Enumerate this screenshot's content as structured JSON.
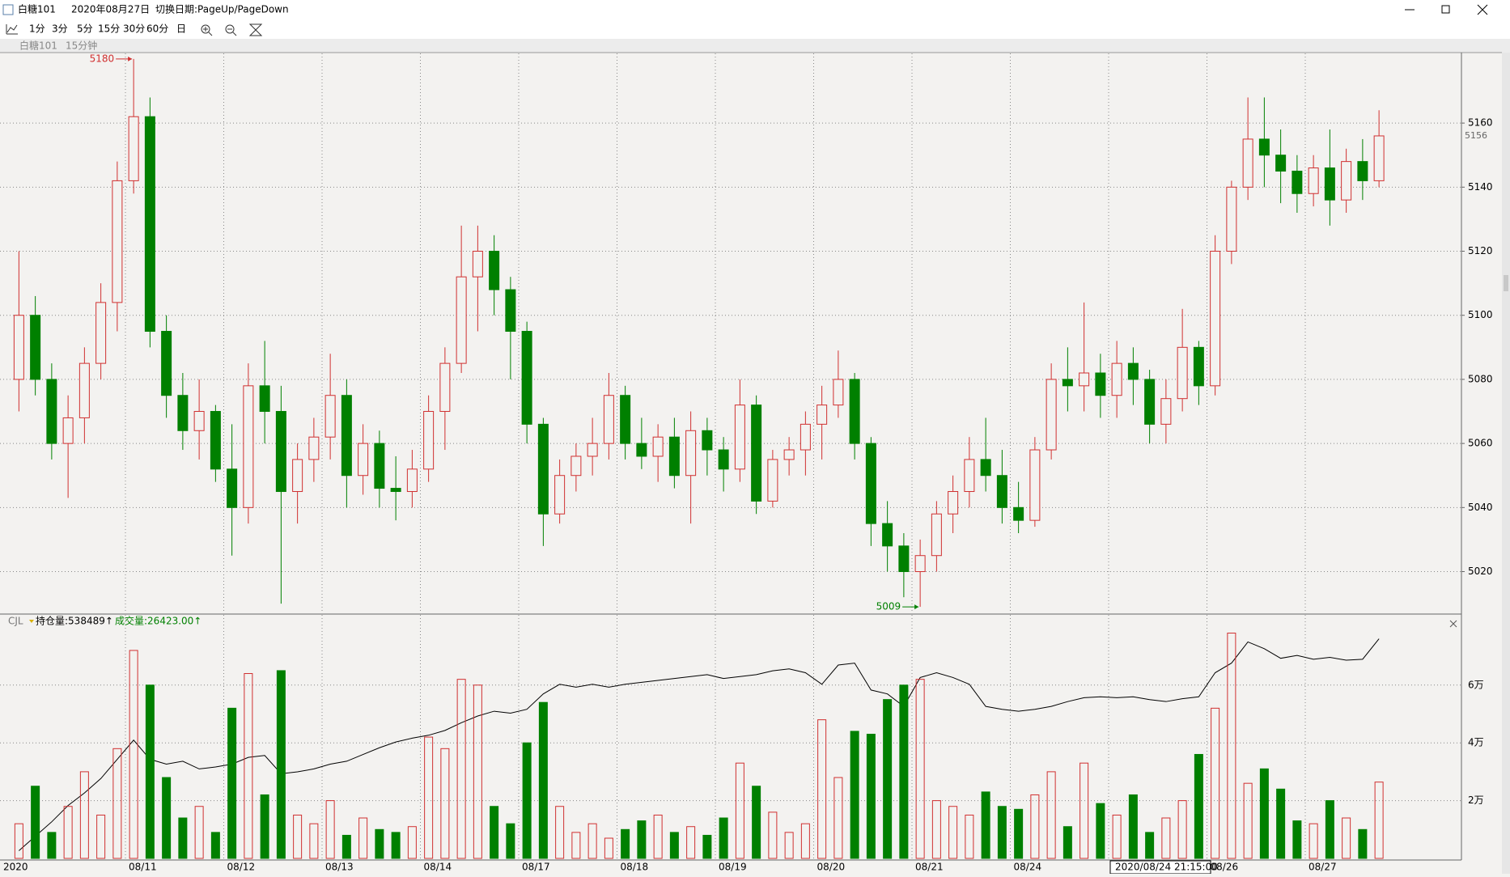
{
  "window": {
    "title": "白糖101",
    "date": "2020年08月27日",
    "hint": "切换日期:PageUp/PageDown",
    "toolbar": [
      "1分",
      "3分",
      "5分",
      "15分",
      "30分",
      "60分",
      "日"
    ],
    "tab": {
      "symbol": "白糖101",
      "period": "15分钟"
    },
    "cursor_time": "2020/08/24 21:15:00"
  },
  "chart_data": [
    {
      "type": "candlestick",
      "up_color": "#d03030",
      "down_color": "#008000",
      "grid": true,
      "ylim": [
        5007,
        5182
      ],
      "yticks": [
        5020,
        5040,
        5060,
        5080,
        5100,
        5120,
        5140,
        5160
      ],
      "max_label": 5180,
      "min_label": 5009,
      "open": [
        5080,
        5100,
        5080,
        5060,
        5068,
        5085,
        5104,
        5142,
        5162,
        5095,
        5075,
        5064,
        5070,
        5052,
        5040,
        5078,
        5070,
        5045,
        5055,
        5062,
        5075,
        5050,
        5060,
        5046,
        5045,
        5052,
        5070,
        5085,
        5112,
        5120,
        5108,
        5095,
        5066,
        5038,
        5050,
        5056,
        5060,
        5075,
        5060,
        5056,
        5062,
        5050,
        5064,
        5058,
        5052,
        5072,
        5042,
        5055,
        5058,
        5066,
        5072,
        5080,
        5060,
        5035,
        5028,
        5020,
        5025,
        5038,
        5045,
        5055,
        5050,
        5040,
        5036,
        5058,
        5080,
        5078,
        5082,
        5075,
        5085,
        5080,
        5066,
        5074,
        5090,
        5078,
        5120,
        5140,
        5155,
        5150,
        5145,
        5138,
        5146,
        5136,
        5148,
        5142
      ],
      "high": [
        5120,
        5106,
        5085,
        5075,
        5090,
        5110,
        5148,
        5180,
        5168,
        5100,
        5082,
        5080,
        5072,
        5066,
        5085,
        5092,
        5078,
        5060,
        5068,
        5088,
        5080,
        5066,
        5064,
        5056,
        5058,
        5075,
        5090,
        5128,
        5128,
        5125,
        5112,
        5098,
        5068,
        5055,
        5060,
        5068,
        5082,
        5078,
        5068,
        5066,
        5068,
        5070,
        5068,
        5062,
        5080,
        5075,
        5058,
        5062,
        5070,
        5078,
        5089,
        5082,
        5062,
        5042,
        5032,
        5030,
        5042,
        5050,
        5062,
        5068,
        5058,
        5048,
        5062,
        5085,
        5090,
        5104,
        5088,
        5092,
        5090,
        5083,
        5080,
        5102,
        5092,
        5125,
        5142,
        5168,
        5168,
        5158,
        5150,
        5150,
        5158,
        5152,
        5155,
        5164
      ],
      "low": [
        5070,
        5075,
        5055,
        5043,
        5060,
        5080,
        5095,
        5138,
        5090,
        5068,
        5058,
        5055,
        5048,
        5025,
        5035,
        5060,
        5010,
        5035,
        5048,
        5055,
        5040,
        5044,
        5040,
        5036,
        5040,
        5048,
        5058,
        5082,
        5095,
        5100,
        5080,
        5060,
        5028,
        5035,
        5045,
        5050,
        5055,
        5055,
        5052,
        5048,
        5046,
        5035,
        5050,
        5045,
        5048,
        5038,
        5040,
        5050,
        5050,
        5055,
        5068,
        5055,
        5028,
        5020,
        5012,
        5009,
        5020,
        5032,
        5040,
        5045,
        5035,
        5032,
        5034,
        5055,
        5070,
        5070,
        5068,
        5068,
        5072,
        5060,
        5060,
        5070,
        5072,
        5075,
        5116,
        5136,
        5140,
        5135,
        5132,
        5134,
        5128,
        5132,
        5136,
        5140
      ],
      "close": [
        5100,
        5080,
        5060,
        5068,
        5085,
        5104,
        5142,
        5162,
        5095,
        5075,
        5064,
        5070,
        5052,
        5040,
        5078,
        5070,
        5045,
        5055,
        5062,
        5075,
        5050,
        5060,
        5046,
        5045,
        5052,
        5070,
        5085,
        5112,
        5120,
        5108,
        5095,
        5066,
        5038,
        5050,
        5056,
        5060,
        5075,
        5060,
        5056,
        5062,
        5050,
        5064,
        5058,
        5052,
        5072,
        5042,
        5055,
        5058,
        5066,
        5072,
        5080,
        5060,
        5035,
        5028,
        5020,
        5025,
        5038,
        5045,
        5055,
        5050,
        5040,
        5036,
        5058,
        5080,
        5078,
        5082,
        5075,
        5085,
        5080,
        5066,
        5074,
        5090,
        5078,
        5120,
        5140,
        5155,
        5150,
        5145,
        5138,
        5146,
        5136,
        5148,
        5142,
        5156
      ]
    },
    {
      "type": "bar",
      "indicator": "CJL",
      "grid": true,
      "categories": [
        "2020",
        null,
        null,
        null,
        null,
        null,
        null,
        "08/11",
        null,
        null,
        null,
        null,
        null,
        "08/12",
        null,
        null,
        null,
        null,
        null,
        "08/13",
        null,
        null,
        null,
        null,
        null,
        "08/14",
        null,
        null,
        null,
        null,
        null,
        "08/17",
        null,
        null,
        null,
        null,
        null,
        "08/18",
        null,
        null,
        null,
        null,
        null,
        "08/19",
        null,
        null,
        null,
        null,
        null,
        "08/20",
        null,
        null,
        null,
        null,
        null,
        "08/21",
        null,
        null,
        null,
        null,
        null,
        "08/24",
        null,
        null,
        null,
        null,
        null,
        null,
        null,
        null,
        null,
        null,
        null,
        "08/26",
        null,
        null,
        null,
        null,
        null,
        "08/27",
        null,
        null,
        null,
        null
      ],
      "ylim": [
        0,
        83750
      ],
      "yticks": [
        {
          "value": 20000,
          "label": "2万"
        },
        {
          "value": 40000,
          "label": "4万"
        },
        {
          "value": 60000,
          "label": "6万"
        }
      ],
      "y2lim": [
        470000,
        541400
      ],
      "series": [
        {
          "name": "持仓量:538489↑",
          "color": "#000000",
          "axis": "y2",
          "values": [
            472400,
            476900,
            481400,
            486500,
            490400,
            494900,
            500900,
            506900,
            500900,
            499400,
            500300,
            497900,
            498500,
            499400,
            501500,
            502100,
            496400,
            497000,
            497900,
            499400,
            500300,
            502400,
            504500,
            506300,
            507500,
            508400,
            509900,
            512300,
            514400,
            515900,
            515300,
            516500,
            521300,
            524300,
            523400,
            524300,
            523400,
            524300,
            524900,
            525500,
            526100,
            526700,
            527300,
            526100,
            526700,
            527300,
            528500,
            529100,
            527900,
            524300,
            530300,
            530900,
            522500,
            521300,
            517400,
            526400,
            527900,
            526400,
            524300,
            517400,
            516500,
            515900,
            516500,
            517400,
            518900,
            520100,
            520400,
            520100,
            520400,
            519500,
            518900,
            519800,
            520400,
            527900,
            530900,
            537500,
            535400,
            532400,
            533300,
            532100,
            532700,
            531800,
            532100,
            538489
          ]
        },
        {
          "name": "成交量:26423.00↑",
          "color": "#008000",
          "values": [
            12000,
            25000,
            9000,
            18000,
            30000,
            15000,
            38000,
            72000,
            60000,
            28000,
            14000,
            18000,
            9000,
            52000,
            64000,
            22000,
            65000,
            15000,
            12000,
            20000,
            8000,
            14000,
            10000,
            9000,
            11000,
            42000,
            38000,
            62000,
            60000,
            18000,
            12000,
            40000,
            54000,
            18000,
            9000,
            12000,
            7000,
            10000,
            13000,
            15000,
            9000,
            11000,
            8000,
            14000,
            33000,
            25000,
            16000,
            9000,
            12000,
            48000,
            28000,
            44000,
            43000,
            55000,
            60000,
            62000,
            20000,
            18000,
            15000,
            23000,
            18000,
            17000,
            22000,
            30000,
            11000,
            33000,
            19000,
            15000,
            22000,
            9000,
            14000,
            20000,
            36000,
            52000,
            78000,
            26000,
            31000,
            24000,
            13000,
            12000,
            20000,
            14000,
            10000,
            26423
          ]
        }
      ]
    }
  ]
}
